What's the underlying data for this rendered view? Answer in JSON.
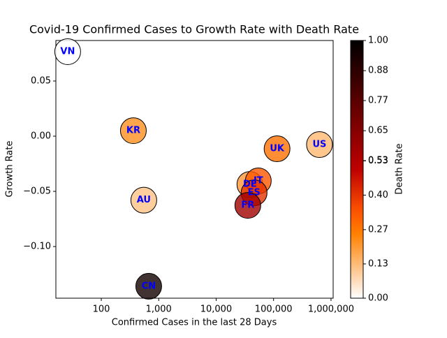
{
  "chart_data": {
    "type": "scatter",
    "title": "Covid-19 Confirmed Cases to Growth Rate with Death Rate",
    "xlabel": "Confirmed Cases in the last 28 Days",
    "ylabel": "Growth Rate",
    "colorbar_label": "Death Rate",
    "colormap": "gist_heat_r",
    "xscale": "log",
    "labels": [
      "VN",
      "KR",
      "AU",
      "CN",
      "DE",
      "IT",
      "ES",
      "FR",
      "UK",
      "US"
    ],
    "x": [
      26,
      362,
      550,
      670,
      38700,
      54200,
      45800,
      35600,
      115000,
      630000
    ],
    "y": [
      0.0766,
      0.005,
      -0.058,
      -0.136,
      -0.0437,
      -0.0405,
      -0.0513,
      -0.0627,
      -0.0114,
      -0.0076
    ],
    "death_rate": [
      0.0,
      0.22,
      0.12,
      0.95,
      0.2,
      0.33,
      0.4,
      0.58,
      0.28,
      0.14
    ],
    "xlim": [
      16.2,
      1090000
    ],
    "ylim": [
      -0.1468,
      0.0867
    ],
    "clim": [
      0,
      1
    ],
    "xticks": [
      {
        "value": 100,
        "label": "100"
      },
      {
        "value": 1000,
        "label": "1,000"
      },
      {
        "value": 10000,
        "label": "10,000"
      },
      {
        "value": 100000,
        "label": "100,000"
      },
      {
        "value": 1000000,
        "label": "1,000,000"
      }
    ],
    "yticks": [
      {
        "value": 0.05,
        "label": "0.05"
      },
      {
        "value": 0.0,
        "label": "0.00"
      },
      {
        "value": -0.05,
        "label": "−0.05"
      },
      {
        "value": -0.1,
        "label": "−0.10"
      }
    ],
    "cticks": [
      {
        "value": 0.0,
        "label": "0.00"
      },
      {
        "value": 0.133,
        "label": "0.13"
      },
      {
        "value": 0.266,
        "label": "0.27"
      },
      {
        "value": 0.4,
        "label": "0.40"
      },
      {
        "value": 0.533,
        "label": "0.53"
      },
      {
        "value": 0.534,
        "label": "0.53"
      },
      {
        "value": 0.65,
        "label": "0.65"
      },
      {
        "value": 0.767,
        "label": "0.77"
      },
      {
        "value": 0.883,
        "label": "0.88"
      },
      {
        "value": 1.0,
        "label": "1.00"
      }
    ],
    "label_color": "#0000ff"
  }
}
